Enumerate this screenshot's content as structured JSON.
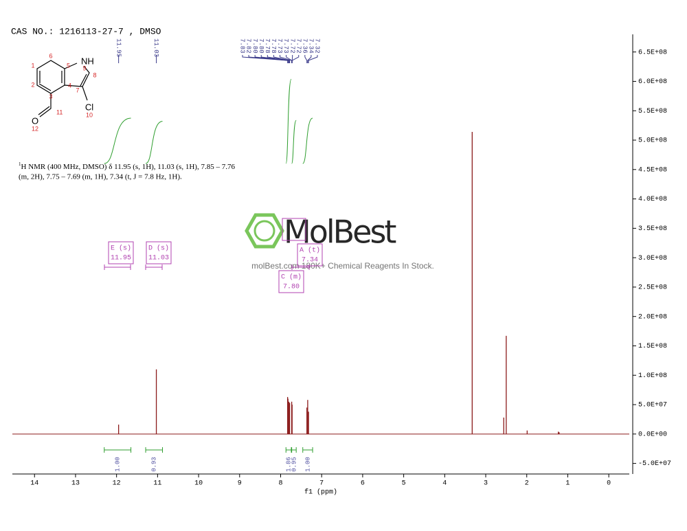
{
  "header": {
    "title": "CAS NO.: 1216113-27-7 , DMSO"
  },
  "structure": {
    "atoms": [
      "6",
      "1",
      "2",
      "3",
      "4",
      "5",
      "NH",
      "9",
      "8",
      "7",
      "Cl",
      "10",
      "11",
      "O",
      "12"
    ]
  },
  "description": {
    "sup": "1",
    "line1": "H NMR (400 MHz, DMSO) δ 11.95 (s, 1H), 11.03 (s, 1H), 7.85 – 7.76",
    "line2": "(m, 2H), 7.75 – 7.69 (m, 1H), 7.34 (t, J = 7.8 Hz, 1H)."
  },
  "watermark": {
    "logo": "MolBest",
    "tagline": "molBest.com 180K+ Chemical Reagents In Stock."
  },
  "chart_data": {
    "type": "nmr",
    "xlabel": "f1 (ppm)",
    "xlim": [
      14.54,
      -0.5
    ],
    "xticks": [
      14,
      13,
      12,
      11,
      10,
      9,
      8,
      7,
      6,
      5,
      4,
      3,
      2,
      1,
      0
    ],
    "ylim": [
      -68000000,
      680000000
    ],
    "yticks": [
      {
        "value": 650000000,
        "label": "6.5E+08"
      },
      {
        "value": 600000000,
        "label": "6.0E+08"
      },
      {
        "value": 550000000,
        "label": "5.5E+08"
      },
      {
        "value": 500000000,
        "label": "5.0E+08"
      },
      {
        "value": 450000000,
        "label": "4.5E+08"
      },
      {
        "value": 400000000,
        "label": "4.0E+08"
      },
      {
        "value": 350000000,
        "label": "3.5E+08"
      },
      {
        "value": 300000000,
        "label": "3.0E+08"
      },
      {
        "value": 250000000,
        "label": "2.5E+08"
      },
      {
        "value": 200000000,
        "label": "2.0E+08"
      },
      {
        "value": 150000000,
        "label": "1.5E+08"
      },
      {
        "value": 100000000,
        "label": "1.0E+08"
      },
      {
        "value": 50000000,
        "label": "5.0E+07"
      },
      {
        "value": 0,
        "label": "0.0E+00"
      },
      {
        "value": -50000000,
        "label": "-5.0E+07"
      }
    ],
    "color": "#8b1a1a",
    "x": [
      11.95,
      11.03,
      7.83,
      7.82,
      7.8,
      7.78,
      7.73,
      7.72,
      7.36,
      7.34,
      7.32,
      3.33,
      2.56,
      2.5,
      1.99,
      1.23,
      1.21
    ],
    "values": [
      16000000,
      110000000,
      63000000,
      60000000,
      55000000,
      53000000,
      55000000,
      50000000,
      45000000,
      58000000,
      38000000,
      514000000,
      28000000,
      167000000,
      6000000,
      4000000,
      3000000
    ],
    "peak_labels": [
      "11.95",
      "11.03",
      "7.83",
      "7.82",
      "7.80",
      "7.80",
      "7.78",
      "7.78",
      "7.73",
      "7.73",
      "7.72",
      "7.72",
      "7.36",
      "7.34",
      "7.32"
    ],
    "multiplets": [
      {
        "name": "E (s)",
        "shift": "11.95"
      },
      {
        "name": "D (s)",
        "shift": "11.03"
      },
      {
        "name": "A (t)",
        "shift": "7.34"
      },
      {
        "name": "C (m)",
        "shift": "7.80"
      }
    ],
    "integral_color": "#2e9e2e",
    "integrals": [
      {
        "range": [
          12.3,
          11.65
        ],
        "label": "1.00"
      },
      {
        "range": [
          11.29,
          10.88
        ],
        "label": "0.93"
      },
      {
        "range": [
          7.87,
          7.74
        ],
        "label": "1.86"
      },
      {
        "range": [
          7.73,
          7.62
        ],
        "label": "0.95"
      },
      {
        "range": [
          7.46,
          7.22
        ],
        "label": "1.00"
      }
    ]
  }
}
